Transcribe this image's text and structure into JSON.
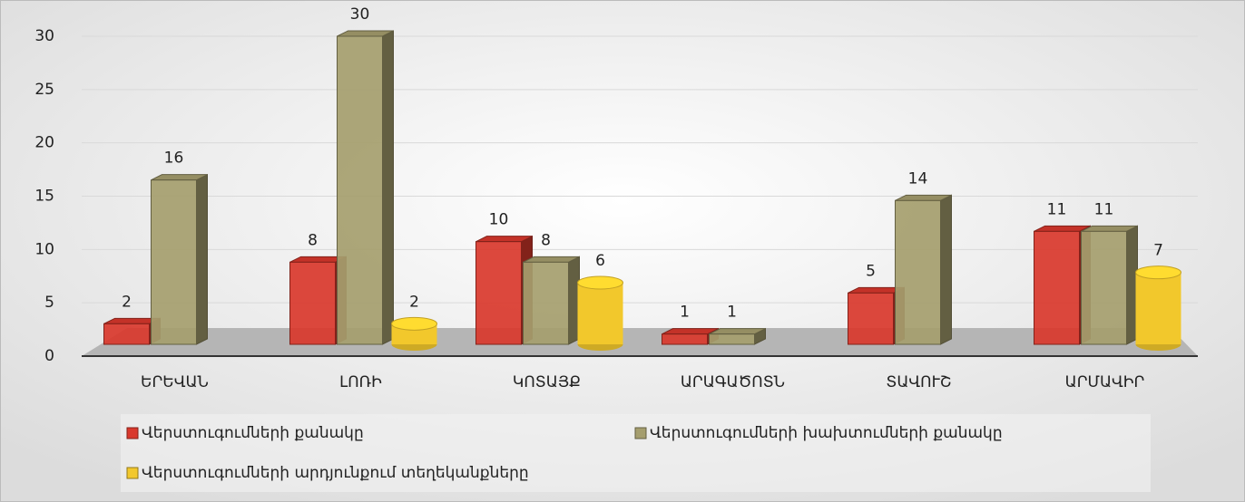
{
  "chart_data": {
    "type": "bar3d",
    "categories": [
      "ԵՐԵՎԱՆ",
      "ԼՈՌԻ",
      "ԿՈՏԱՅՔ",
      "ԱՐԱԳԱԾՈՏՆ",
      "ՏԱՎՈՒՇ",
      "ԱՐՄԱՎԻՐ"
    ],
    "series": [
      {
        "name": "Վերստուգումների քանակը",
        "color": "#d9382c",
        "values": [
          2,
          8,
          10,
          1,
          5,
          11
        ]
      },
      {
        "name": "Վերստուգումների խախտումների քանակը",
        "color": "#a59e6e",
        "values": [
          16,
          30,
          8,
          1,
          14,
          11
        ]
      },
      {
        "name": "Վերստուգումների արդյունքում տեղեկանքները",
        "color": "#f2c82c",
        "values": [
          null,
          2,
          6,
          null,
          null,
          7
        ]
      }
    ],
    "ylim": [
      0,
      30
    ],
    "yticks": [
      0,
      5,
      10,
      15,
      20,
      25,
      30
    ],
    "grid": true,
    "legend": "bottom"
  }
}
